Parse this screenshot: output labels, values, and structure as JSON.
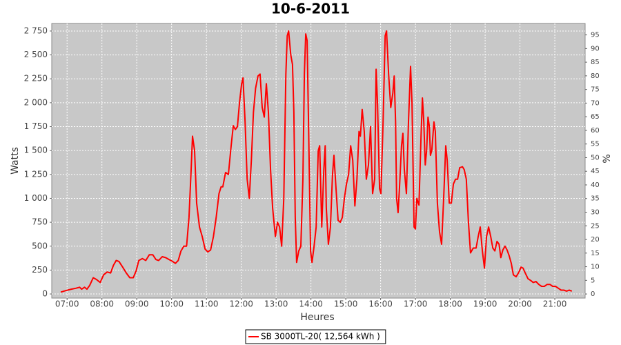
{
  "chart_data": {
    "type": "line",
    "title": "10-6-2011",
    "x_label": "Heures",
    "y_label": "Watts",
    "y2_label": "%",
    "x": [
      6.82,
      6.96,
      7.12,
      7.26,
      7.36,
      7.42,
      7.5,
      7.57,
      7.65,
      7.75,
      7.85,
      7.95,
      8.05,
      8.15,
      8.25,
      8.33,
      8.41,
      8.49,
      8.58,
      8.7,
      8.8,
      8.9,
      8.98,
      9.06,
      9.16,
      9.26,
      9.36,
      9.46,
      9.55,
      9.63,
      9.73,
      9.83,
      9.93,
      10.03,
      10.11,
      10.19,
      10.27,
      10.35,
      10.43,
      10.5,
      10.56,
      10.6,
      10.66,
      10.72,
      10.8,
      10.88,
      10.96,
      11.04,
      11.12,
      11.2,
      11.28,
      11.36,
      11.42,
      11.47,
      11.55,
      11.63,
      11.71,
      11.77,
      11.83,
      11.89,
      11.95,
      12.01,
      12.05,
      12.11,
      12.17,
      12.23,
      12.29,
      12.35,
      12.41,
      12.48,
      12.54,
      12.6,
      12.66,
      12.72,
      12.78,
      12.84,
      12.9,
      12.98,
      13.04,
      13.1,
      13.16,
      13.22,
      13.28,
      13.32,
      13.36,
      13.42,
      13.47,
      13.51,
      13.55,
      13.59,
      13.65,
      13.71,
      13.77,
      13.81,
      13.85,
      13.89,
      13.93,
      13.99,
      14.03,
      14.09,
      14.15,
      14.21,
      14.25,
      14.31,
      14.37,
      14.41,
      14.44,
      14.5,
      14.56,
      14.62,
      14.66,
      14.72,
      14.78,
      14.84,
      14.9,
      14.96,
      15.02,
      15.08,
      15.14,
      15.2,
      15.26,
      15.32,
      15.38,
      15.42,
      15.47,
      15.53,
      15.59,
      15.65,
      15.71,
      15.77,
      15.83,
      15.87,
      15.91,
      15.97,
      16.01,
      16.07,
      16.13,
      16.17,
      16.23,
      16.29,
      16.35,
      16.39,
      16.43,
      16.46,
      16.5,
      16.54,
      16.6,
      16.64,
      16.68,
      16.74,
      16.8,
      16.86,
      16.9,
      16.96,
      17.0,
      17.04,
      17.1,
      17.16,
      17.2,
      17.24,
      17.28,
      17.32,
      17.36,
      17.4,
      17.43,
      17.47,
      17.53,
      17.57,
      17.63,
      17.69,
      17.75,
      17.81,
      17.87,
      17.91,
      17.97,
      18.03,
      18.09,
      18.15,
      18.21,
      18.27,
      18.35,
      18.4,
      18.46,
      18.52,
      18.58,
      18.66,
      18.74,
      18.8,
      18.86,
      18.92,
      18.98,
      19.04,
      19.1,
      19.16,
      19.22,
      19.28,
      19.34,
      19.4,
      19.45,
      19.51,
      19.57,
      19.63,
      19.69,
      19.75,
      19.81,
      19.89,
      19.97,
      20.03,
      20.09,
      20.15,
      20.23,
      20.31,
      20.38,
      20.46,
      20.54,
      20.62,
      20.7,
      20.78,
      20.86,
      20.94,
      21.02,
      21.1,
      21.18,
      21.26,
      21.34,
      21.41,
      21.49
    ],
    "series": [
      {
        "name": "SB 3000TL-20( 12,564 kWh )",
        "color": "#ff0000",
        "values": [
          20,
          35,
          50,
          60,
          70,
          50,
          70,
          50,
          90,
          170,
          150,
          120,
          200,
          230,
          220,
          300,
          350,
          340,
          290,
          220,
          170,
          170,
          240,
          350,
          370,
          350,
          410,
          410,
          360,
          350,
          390,
          380,
          360,
          340,
          320,
          350,
          450,
          500,
          500,
          800,
          1300,
          1650,
          1500,
          950,
          700,
          600,
          470,
          440,
          460,
          600,
          800,
          1050,
          1120,
          1120,
          1270,
          1250,
          1550,
          1760,
          1720,
          1750,
          2000,
          2200,
          2260,
          1800,
          1200,
          1000,
          1400,
          1900,
          2150,
          2280,
          2300,
          1950,
          1850,
          2200,
          1900,
          1300,
          900,
          600,
          750,
          700,
          500,
          1000,
          2300,
          2700,
          2750,
          2500,
          2400,
          1900,
          800,
          330,
          450,
          500,
          1200,
          2300,
          2720,
          2650,
          1800,
          450,
          330,
          500,
          700,
          1500,
          1550,
          700,
          1300,
          1550,
          900,
          520,
          700,
          1250,
          1450,
          1100,
          770,
          750,
          800,
          1000,
          1150,
          1250,
          1550,
          1400,
          920,
          1200,
          1700,
          1650,
          1930,
          1700,
          1200,
          1350,
          1750,
          1050,
          1200,
          2350,
          2000,
          1100,
          1050,
          1800,
          2700,
          2750,
          2300,
          1950,
          2100,
          2280,
          1800,
          1000,
          850,
          1100,
          1550,
          1680,
          1300,
          1050,
          1800,
          2380,
          2000,
          700,
          680,
          1000,
          930,
          1650,
          2050,
          1800,
          1350,
          1500,
          1850,
          1750,
          1450,
          1500,
          1800,
          1700,
          950,
          650,
          520,
          1000,
          1550,
          1400,
          950,
          950,
          1150,
          1200,
          1200,
          1320,
          1330,
          1300,
          1200,
          750,
          430,
          480,
          480,
          600,
          700,
          450,
          270,
          600,
          700,
          600,
          480,
          450,
          550,
          520,
          380,
          460,
          500,
          460,
          400,
          320,
          200,
          180,
          230,
          280,
          270,
          220,
          160,
          140,
          120,
          130,
          100,
          80,
          80,
          100,
          100,
          80,
          80,
          60,
          40,
          40,
          30,
          40,
          30
        ]
      }
    ],
    "xlim": [
      6.56,
      21.87
    ],
    "xticks": [
      {
        "value": 7,
        "label": "07:00"
      },
      {
        "value": 8,
        "label": "08:00"
      },
      {
        "value": 9,
        "label": "09:00"
      },
      {
        "value": 10,
        "label": "10:00"
      },
      {
        "value": 11,
        "label": "11:00"
      },
      {
        "value": 12,
        "label": "12:00"
      },
      {
        "value": 13,
        "label": "13:00"
      },
      {
        "value": 14,
        "label": "14:00"
      },
      {
        "value": 15,
        "label": "15:00"
      },
      {
        "value": 16,
        "label": "16:00"
      },
      {
        "value": 17,
        "label": "17:00"
      },
      {
        "value": 18,
        "label": "18:00"
      },
      {
        "value": 19,
        "label": "19:00"
      },
      {
        "value": 20,
        "label": "20:00"
      },
      {
        "value": 21,
        "label": "21:00"
      }
    ],
    "ylim": [
      -43,
      2829
    ],
    "yticks": [
      0,
      250,
      500,
      750,
      {
        "value": 1000,
        "label": "1 000"
      },
      {
        "value": 1250,
        "label": "1 250"
      },
      {
        "value": 1500,
        "label": "1 500"
      },
      {
        "value": 1750,
        "label": "1 750"
      },
      {
        "value": 2000,
        "label": "2 000"
      },
      {
        "value": 2250,
        "label": "2 250"
      },
      {
        "value": 2500,
        "label": "2 500"
      },
      {
        "value": 2750,
        "label": "2 750"
      }
    ],
    "y2lim": [
      -1.5,
      99.2
    ],
    "y2ticks": [
      0,
      5,
      10,
      15,
      20,
      25,
      30,
      35,
      40,
      45,
      50,
      55,
      60,
      65,
      70,
      75,
      80,
      85,
      90,
      95
    ],
    "grid": true,
    "legend": "bottom"
  }
}
